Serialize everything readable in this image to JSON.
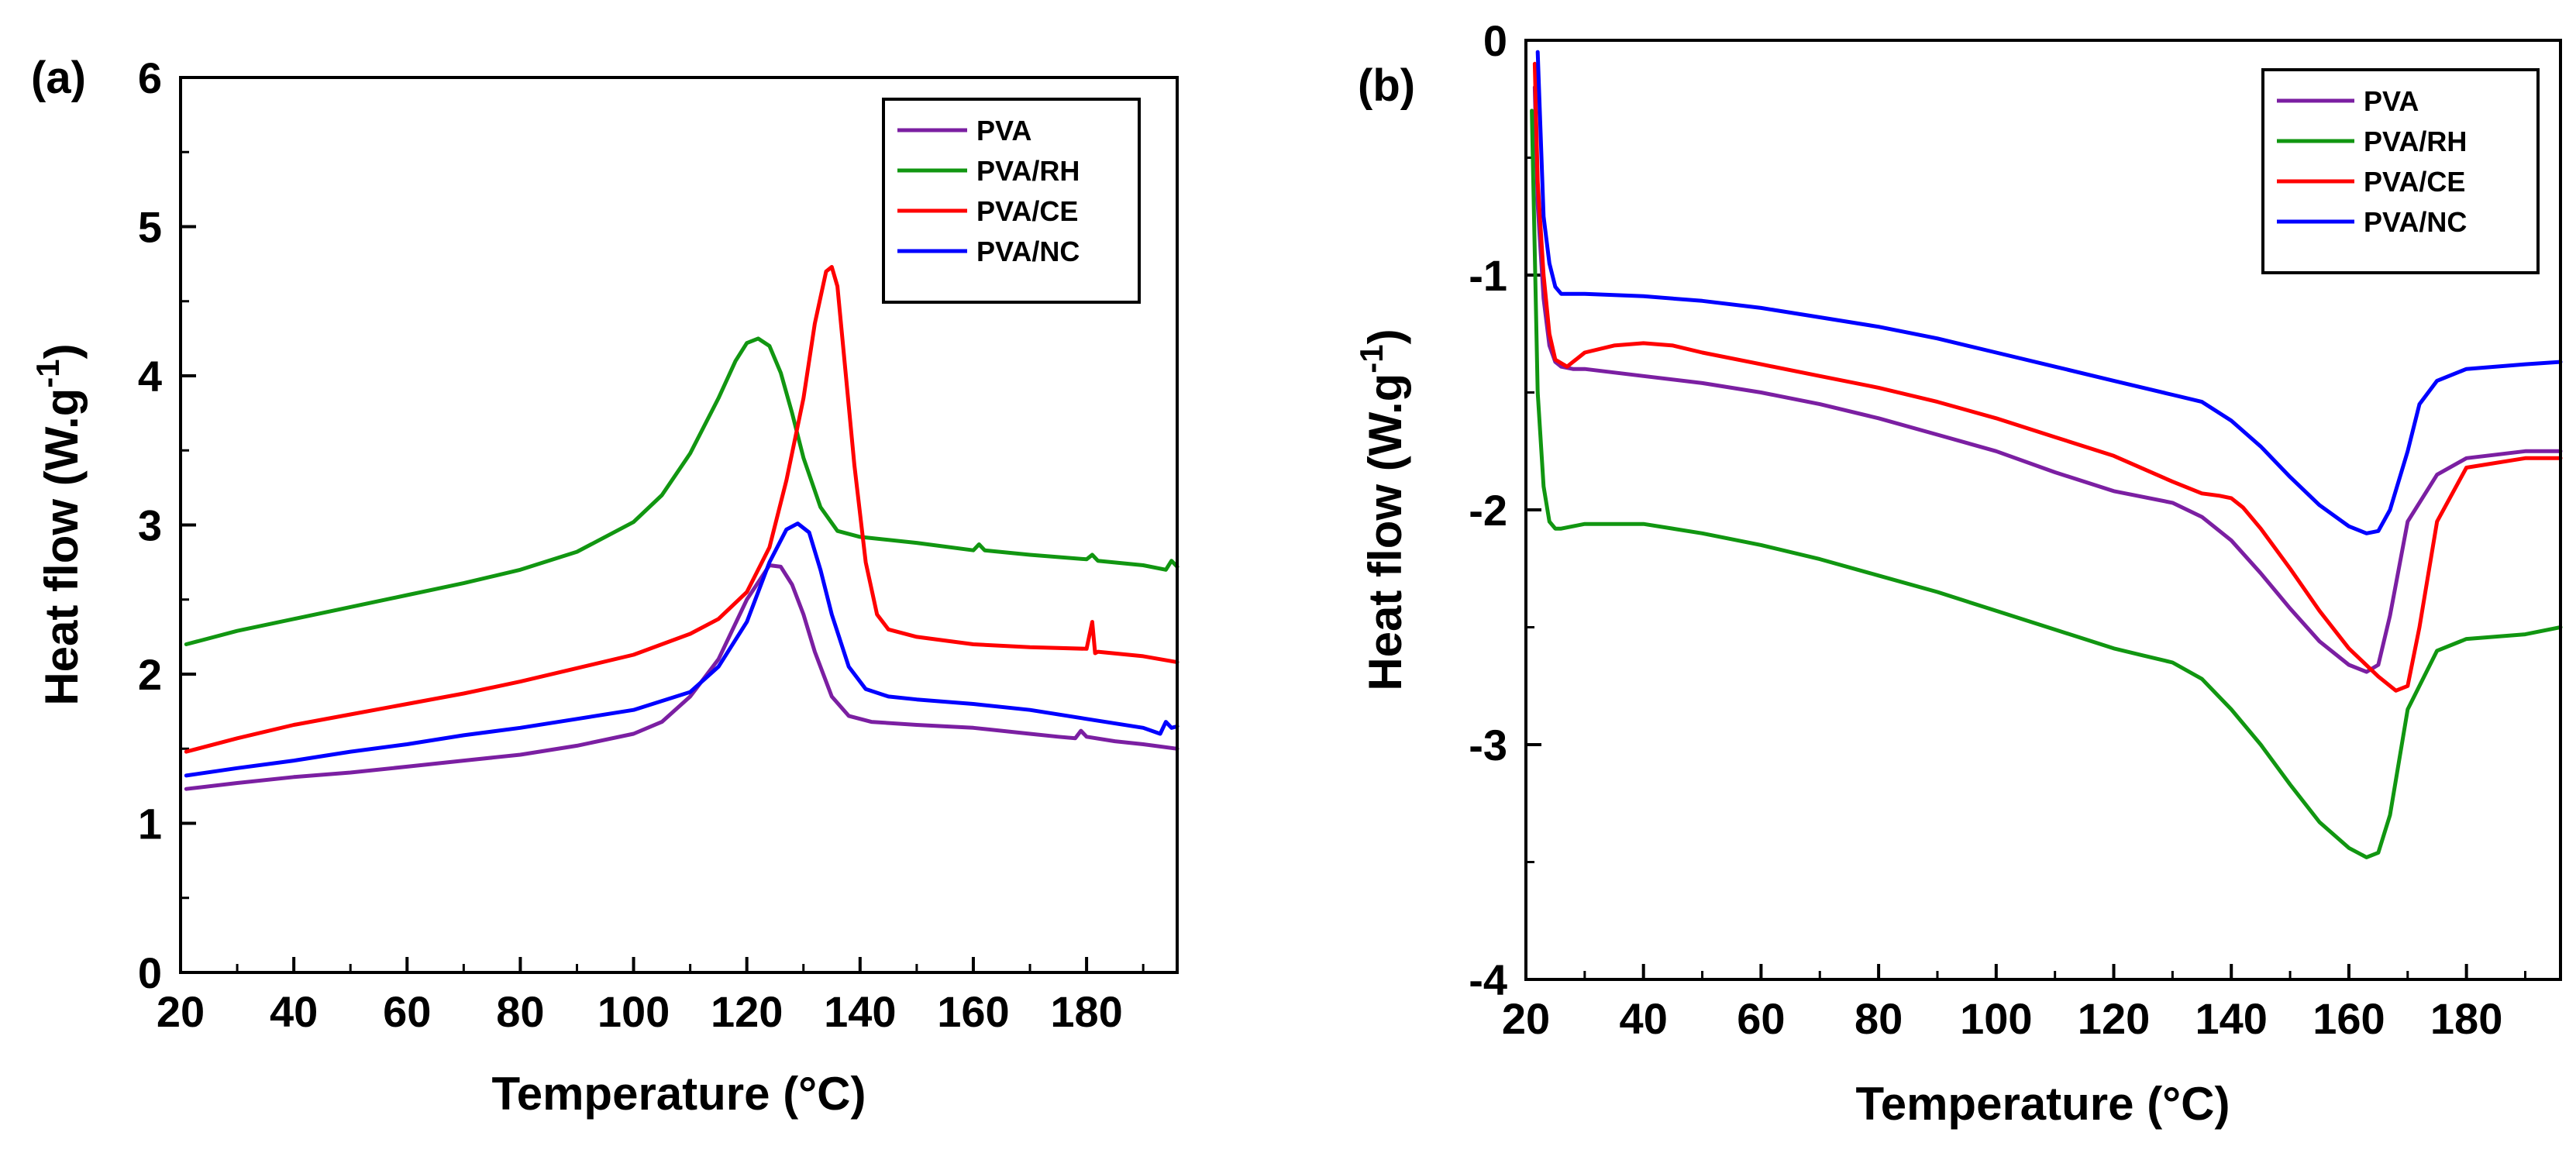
{
  "chart_data": [
    {
      "type": "line",
      "panel_label": "(a)",
      "xlabel": "Temperature (°C)",
      "ylabel": "Heat flow (W.g",
      "ylabel_sup": "-1",
      "ylabel_close": ")",
      "xlim": [
        20,
        196
      ],
      "ylim": [
        0,
        6
      ],
      "xticks": [
        20,
        40,
        60,
        80,
        100,
        120,
        140,
        160,
        180
      ],
      "xtick_labels": [
        "20",
        "40",
        "60",
        "80",
        "100",
        "120",
        "140",
        "160",
        "180"
      ],
      "yticks": [
        0,
        1,
        2,
        3,
        4,
        5,
        6
      ],
      "ytick_labels": [
        "0",
        "1",
        "2",
        "3",
        "4",
        "5",
        "6"
      ],
      "legend_position": "top-right",
      "series": [
        {
          "name": "PVA",
          "color": "#7b1fa2",
          "x": [
            21,
            30,
            40,
            50,
            60,
            70,
            80,
            90,
            100,
            105,
            110,
            115,
            120,
            124,
            126,
            128,
            130,
            132,
            135,
            138,
            142,
            150,
            160,
            170,
            175,
            178,
            179,
            180,
            185,
            190,
            196
          ],
          "y": [
            1.23,
            1.27,
            1.31,
            1.34,
            1.38,
            1.42,
            1.46,
            1.52,
            1.6,
            1.68,
            1.85,
            2.1,
            2.5,
            2.73,
            2.72,
            2.6,
            2.4,
            2.15,
            1.85,
            1.72,
            1.68,
            1.66,
            1.64,
            1.6,
            1.58,
            1.57,
            1.62,
            1.58,
            1.55,
            1.53,
            1.5
          ]
        },
        {
          "name": "PVA/RH",
          "color": "#119611",
          "x": [
            21,
            30,
            40,
            50,
            60,
            70,
            80,
            90,
            100,
            105,
            110,
            115,
            118,
            120,
            122,
            124,
            126,
            128,
            130,
            133,
            136,
            140,
            150,
            160,
            161,
            162,
            170,
            180,
            181,
            182,
            190,
            194,
            195,
            196
          ],
          "y": [
            2.2,
            2.29,
            2.37,
            2.45,
            2.53,
            2.61,
            2.7,
            2.82,
            3.02,
            3.2,
            3.48,
            3.85,
            4.1,
            4.22,
            4.25,
            4.2,
            4.02,
            3.75,
            3.45,
            3.12,
            2.96,
            2.92,
            2.88,
            2.83,
            2.87,
            2.83,
            2.8,
            2.77,
            2.8,
            2.76,
            2.73,
            2.7,
            2.76,
            2.72
          ]
        },
        {
          "name": "PVA/CE",
          "color": "#ff0000",
          "x": [
            21,
            30,
            40,
            50,
            60,
            70,
            80,
            90,
            100,
            110,
            115,
            120,
            124,
            127,
            130,
            132,
            134,
            135,
            136,
            137,
            139,
            141,
            143,
            145,
            150,
            160,
            170,
            180,
            181,
            181.5,
            182,
            190,
            196
          ],
          "y": [
            1.48,
            1.57,
            1.66,
            1.73,
            1.8,
            1.87,
            1.95,
            2.04,
            2.13,
            2.27,
            2.37,
            2.55,
            2.85,
            3.3,
            3.85,
            4.35,
            4.7,
            4.73,
            4.6,
            4.2,
            3.4,
            2.75,
            2.4,
            2.3,
            2.25,
            2.2,
            2.18,
            2.17,
            2.35,
            2.14,
            2.15,
            2.12,
            2.08
          ]
        },
        {
          "name": "PVA/NC",
          "color": "#0000ff",
          "x": [
            21,
            30,
            40,
            50,
            60,
            70,
            80,
            90,
            100,
            110,
            115,
            120,
            124,
            127,
            129,
            131,
            133,
            135,
            138,
            141,
            145,
            150,
            160,
            170,
            180,
            190,
            193,
            194,
            195,
            196
          ],
          "y": [
            1.32,
            1.37,
            1.42,
            1.48,
            1.53,
            1.59,
            1.64,
            1.7,
            1.76,
            1.88,
            2.05,
            2.35,
            2.75,
            2.97,
            3.01,
            2.95,
            2.7,
            2.4,
            2.05,
            1.9,
            1.85,
            1.83,
            1.8,
            1.76,
            1.7,
            1.64,
            1.6,
            1.68,
            1.64,
            1.65
          ]
        }
      ]
    },
    {
      "type": "line",
      "panel_label": "(b)",
      "xlabel": "Temperature (°C)",
      "ylabel": "Heat flow (W.g",
      "ylabel_sup": "-1",
      "ylabel_close": ")",
      "xlim": [
        20,
        196
      ],
      "ylim": [
        -4,
        0
      ],
      "xticks": [
        20,
        40,
        60,
        80,
        100,
        120,
        140,
        160,
        180
      ],
      "xtick_labels": [
        "20",
        "40",
        "60",
        "80",
        "100",
        "120",
        "140",
        "160",
        "180"
      ],
      "yticks": [
        -4,
        -3,
        -2,
        -1,
        0
      ],
      "ytick_labels": [
        "-4",
        "-3",
        "-2",
        "-1",
        "0"
      ],
      "legend_position": "top-right",
      "series": [
        {
          "name": "PVA",
          "color": "#7b1fa2",
          "x": [
            21.5,
            22,
            23,
            24,
            25,
            26,
            28,
            30,
            40,
            50,
            60,
            70,
            80,
            90,
            100,
            110,
            120,
            130,
            135,
            140,
            145,
            150,
            155,
            160,
            163,
            165,
            167,
            170,
            175,
            180,
            190,
            196
          ],
          "y": [
            -0.2,
            -0.7,
            -1.1,
            -1.3,
            -1.37,
            -1.39,
            -1.4,
            -1.4,
            -1.43,
            -1.46,
            -1.5,
            -1.55,
            -1.61,
            -1.68,
            -1.75,
            -1.84,
            -1.92,
            -1.97,
            -2.03,
            -2.13,
            -2.27,
            -2.42,
            -2.56,
            -2.66,
            -2.69,
            -2.66,
            -2.45,
            -2.05,
            -1.85,
            -1.78,
            -1.75,
            -1.75
          ]
        },
        {
          "name": "PVA/RH",
          "color": "#119611",
          "x": [
            21,
            21.5,
            22,
            23,
            24,
            25,
            26,
            28,
            30,
            40,
            50,
            60,
            70,
            80,
            90,
            100,
            110,
            120,
            125,
            130,
            135,
            140,
            145,
            150,
            155,
            160,
            163,
            165,
            167,
            170,
            175,
            180,
            190,
            196
          ],
          "y": [
            -0.3,
            -0.9,
            -1.5,
            -1.9,
            -2.05,
            -2.08,
            -2.08,
            -2.07,
            -2.06,
            -2.06,
            -2.1,
            -2.15,
            -2.21,
            -2.28,
            -2.35,
            -2.43,
            -2.51,
            -2.59,
            -2.62,
            -2.65,
            -2.72,
            -2.85,
            -3.0,
            -3.17,
            -3.33,
            -3.44,
            -3.48,
            -3.46,
            -3.3,
            -2.85,
            -2.6,
            -2.55,
            -2.53,
            -2.5
          ]
        },
        {
          "name": "PVA/CE",
          "color": "#ff0000",
          "x": [
            21.5,
            22,
            23,
            24,
            25,
            27,
            28,
            30,
            35,
            40,
            45,
            50,
            60,
            70,
            80,
            90,
            100,
            110,
            120,
            130,
            135,
            138,
            140,
            142,
            145,
            150,
            155,
            160,
            165,
            168,
            170,
            172,
            175,
            180,
            190,
            196
          ],
          "y": [
            -0.1,
            -0.6,
            -1.0,
            -1.25,
            -1.36,
            -1.39,
            -1.37,
            -1.33,
            -1.3,
            -1.29,
            -1.3,
            -1.33,
            -1.38,
            -1.43,
            -1.48,
            -1.54,
            -1.61,
            -1.69,
            -1.77,
            -1.88,
            -1.93,
            -1.94,
            -1.95,
            -1.99,
            -2.08,
            -2.25,
            -2.43,
            -2.59,
            -2.71,
            -2.77,
            -2.75,
            -2.5,
            -2.05,
            -1.82,
            -1.78,
            -1.78
          ]
        },
        {
          "name": "PVA/NC",
          "color": "#0000ff",
          "x": [
            22,
            22.5,
            23,
            24,
            25,
            26,
            28,
            30,
            40,
            50,
            60,
            70,
            80,
            90,
            100,
            110,
            120,
            130,
            135,
            140,
            145,
            150,
            155,
            160,
            163,
            165,
            167,
            170,
            172,
            175,
            180,
            190,
            196
          ],
          "y": [
            -0.05,
            -0.4,
            -0.75,
            -0.95,
            -1.05,
            -1.08,
            -1.08,
            -1.08,
            -1.09,
            -1.11,
            -1.14,
            -1.18,
            -1.22,
            -1.27,
            -1.33,
            -1.39,
            -1.45,
            -1.51,
            -1.54,
            -1.62,
            -1.73,
            -1.86,
            -1.98,
            -2.07,
            -2.1,
            -2.09,
            -2.0,
            -1.75,
            -1.55,
            -1.45,
            -1.4,
            -1.38,
            -1.37
          ]
        }
      ]
    }
  ]
}
